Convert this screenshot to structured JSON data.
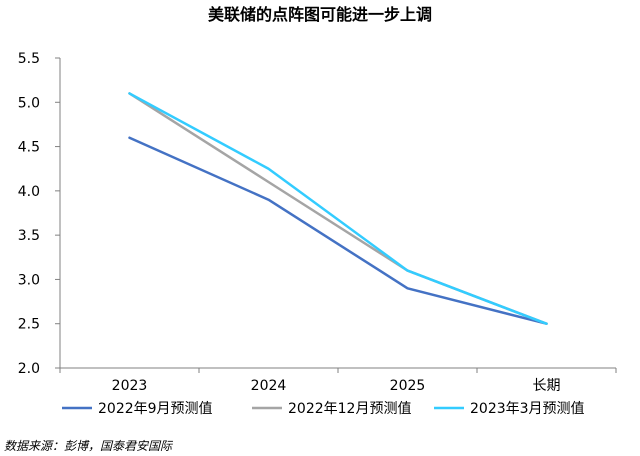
{
  "chart_data": {
    "type": "line",
    "title": "美联储的点阵图可能进一步上调",
    "categories": [
      "2023",
      "2024",
      "2025",
      "长期"
    ],
    "y_ticks": [
      "2.0",
      "2.5",
      "3.0",
      "3.5",
      "4.0",
      "4.5",
      "5.0",
      "5.5"
    ],
    "ylim": [
      2.0,
      5.5
    ],
    "xlabel": "",
    "ylabel": "",
    "grid": false,
    "legend_position": "bottom",
    "series": [
      {
        "name": "2022年9月预测值",
        "values": [
          4.6,
          3.9,
          2.9,
          2.5
        ],
        "color": "#4472C4"
      },
      {
        "name": "2022年12月预测值",
        "values": [
          5.1,
          4.1,
          3.1,
          2.5
        ],
        "color": "#A5A5A5"
      },
      {
        "name": "2023年3月预测值",
        "values": [
          5.1,
          4.25,
          3.1,
          2.5
        ],
        "color": "#33CCFF"
      }
    ],
    "source": "数据来源：彭博，国泰君安国际"
  }
}
